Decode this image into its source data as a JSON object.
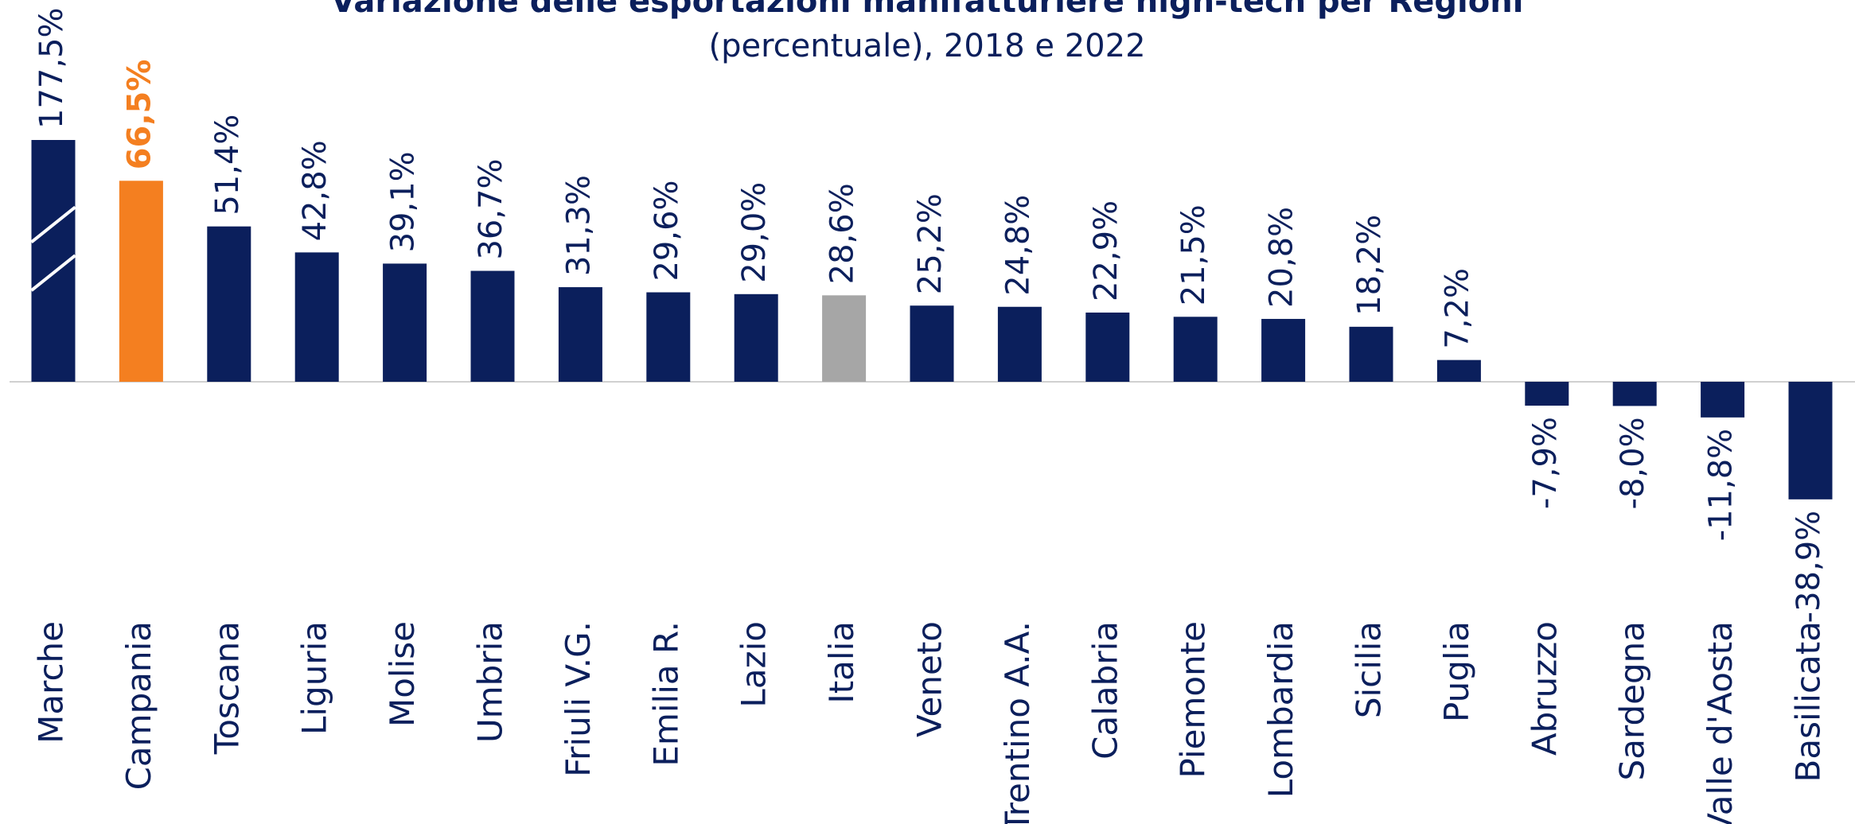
{
  "chart_data": {
    "type": "bar",
    "title": "Variazione delle esportazioni manifatturiere high-tech per Regioni",
    "subtitle": "(percentuale), 2018 e 2022",
    "categories": [
      "Marche",
      "Campania",
      "Toscana",
      "Liguria",
      "Molise",
      "Umbria",
      "Friuli V.G.",
      "Emilia R.",
      "Lazio",
      "Italia",
      "Veneto",
      "Trentino A.A.",
      "Calabria",
      "Piemonte",
      "Lombardia",
      "Sicilia",
      "Puglia",
      "Abruzzo",
      "Sardegna",
      "Valle d'Aosta",
      "Basilicata"
    ],
    "values": [
      177.5,
      66.5,
      51.4,
      42.8,
      39.1,
      36.7,
      31.3,
      29.6,
      29.0,
      28.6,
      25.2,
      24.8,
      22.9,
      21.5,
      20.8,
      18.2,
      7.2,
      -7.9,
      -8.0,
      -11.8,
      -38.9
    ],
    "value_labels": [
      "177,5%",
      "66,5%",
      "51,4%",
      "42,8%",
      "39,1%",
      "36,7%",
      "31,3%",
      "29,6%",
      "29,0%",
      "28,6%",
      "25,2%",
      "24,8%",
      "22,9%",
      "21,5%",
      "20,8%",
      "18,2%",
      "7,2%",
      "-7,9%",
      "-8,0%",
      "-11,8%",
      "-38,9%"
    ],
    "colors": [
      "#0b1f5c",
      "#f47f20",
      "#0b1f5c",
      "#0b1f5c",
      "#0b1f5c",
      "#0b1f5c",
      "#0b1f5c",
      "#0b1f5c",
      "#0b1f5c",
      "#a6a6a6",
      "#0b1f5c",
      "#0b1f5c",
      "#0b1f5c",
      "#0b1f5c",
      "#0b1f5c",
      "#0b1f5c",
      "#0b1f5c",
      "#0b1f5c",
      "#0b1f5c",
      "#0b1f5c",
      "#0b1f5c"
    ],
    "highlight": "Campania",
    "ylim": [
      -40,
      80
    ]
  }
}
